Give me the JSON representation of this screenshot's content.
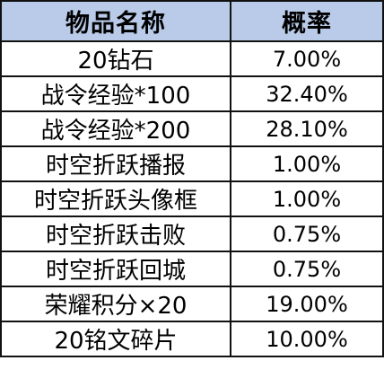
{
  "table": {
    "headers": [
      "物品名称",
      "概率"
    ],
    "rows": [
      {
        "item": "20钻石",
        "rate": "7.00%"
      },
      {
        "item": "战令经验*100",
        "rate": "32.40%"
      },
      {
        "item": "战令经验*200",
        "rate": "28.10%"
      },
      {
        "item": "时空折跃播报",
        "rate": "1.00%"
      },
      {
        "item": "时空折跃头像框",
        "rate": "1.00%"
      },
      {
        "item": "时空折跃击败",
        "rate": "0.75%"
      },
      {
        "item": "时空折跃回城",
        "rate": "0.75%"
      },
      {
        "item": "荣耀积分×20",
        "rate": "19.00%"
      },
      {
        "item": "20铭文碎片",
        "rate": "10.00%"
      }
    ]
  },
  "colors": {
    "header_bg": "#b9cbe9",
    "border": "#111111"
  }
}
